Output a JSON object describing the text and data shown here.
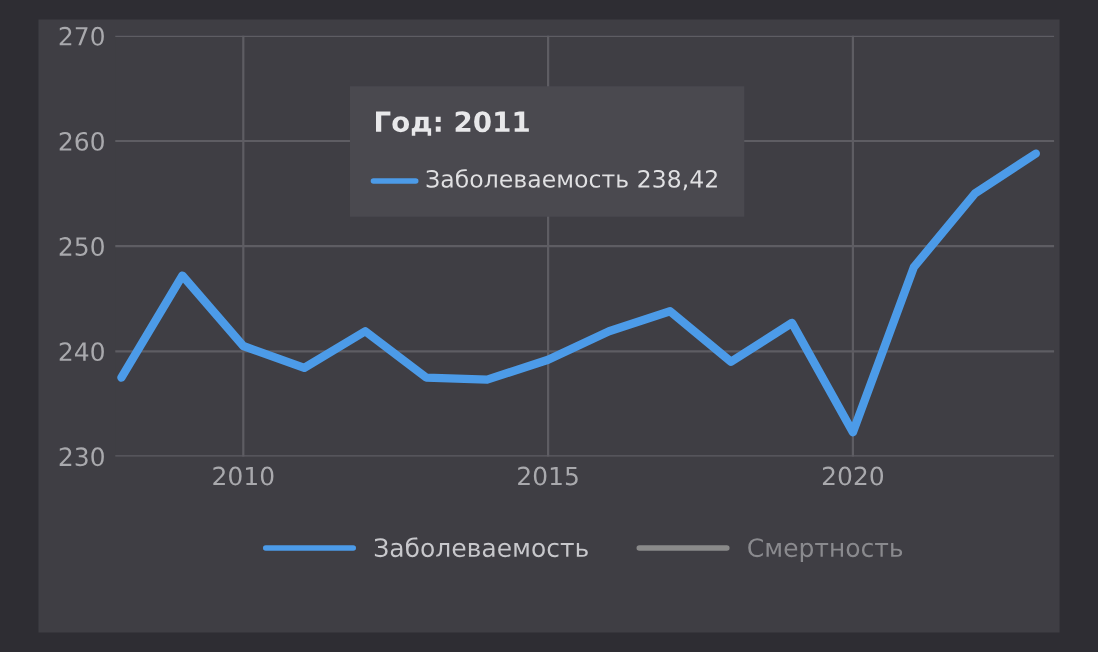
{
  "chart_data": {
    "type": "line",
    "x": [
      2008,
      2009,
      2010,
      2011,
      2012,
      2013,
      2014,
      2015,
      2016,
      2017,
      2018,
      2019,
      2020,
      2021,
      2022,
      2023
    ],
    "series": [
      {
        "name": "Заболеваемость",
        "color": "#4c9be8",
        "values": [
          237.5,
          247.2,
          240.5,
          238.42,
          241.9,
          237.5,
          237.3,
          239.2,
          241.9,
          243.8,
          239.0,
          242.7,
          232.3,
          248.0,
          255.0,
          258.8
        ]
      },
      {
        "name": "Смертность",
        "color": "#8a8a8a",
        "values": [
          null,
          null,
          null,
          null,
          null,
          null,
          null,
          null,
          null,
          null,
          null,
          null,
          null,
          null,
          null,
          null
        ]
      }
    ],
    "xlim": [
      2007.9,
      2023.3
    ],
    "xticks": [
      2010,
      2015,
      2020
    ],
    "ylim": [
      230,
      270
    ],
    "yticks": [
      230,
      240,
      250,
      260,
      270
    ],
    "grid": true,
    "legend": "bottom",
    "annotations": [
      "Год: 2011",
      "Заболеваемость 238,42"
    ]
  }
}
